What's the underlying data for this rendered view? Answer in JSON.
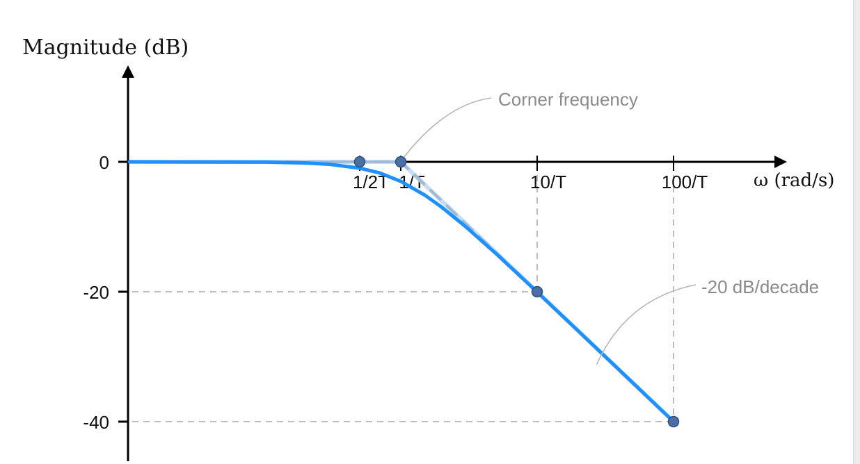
{
  "chart_data": {
    "type": "line",
    "ylabel": "Magnitude (dB)",
    "xlabel": "ω (rad/s)",
    "x_scale": "log",
    "x_ticks": [
      {
        "value": 0.5,
        "label": "1/2T"
      },
      {
        "value": 1,
        "label": "1/T"
      },
      {
        "value": 10,
        "label": "10/T"
      },
      {
        "value": 100,
        "label": "100/T"
      }
    ],
    "y_ticks": [
      {
        "value": 0,
        "label": "0"
      },
      {
        "value": -20,
        "label": "-20"
      },
      {
        "value": -40,
        "label": "-40"
      }
    ],
    "ylim": [
      -45,
      13
    ],
    "series": [
      {
        "kind": "actual",
        "x": [
          0.03,
          0.1,
          0.2,
          0.3,
          0.5,
          0.7,
          1,
          1.5,
          2,
          3,
          5,
          7,
          10,
          20,
          50,
          100
        ],
        "y": [
          0,
          -0.04,
          -0.17,
          -0.37,
          -0.97,
          -1.7,
          -3.01,
          -5.12,
          -6.99,
          -10.0,
          -14.15,
          -17.0,
          -20.04,
          -26.03,
          -33.98,
          -40.0
        ]
      },
      {
        "kind": "asymptote",
        "x": [
          0.03,
          1,
          100
        ],
        "y": [
          0,
          0,
          -40
        ]
      }
    ],
    "points": [
      {
        "x": 0.5,
        "y": 0
      },
      {
        "x": 1,
        "y": 0
      },
      {
        "x": 10,
        "y": -20
      },
      {
        "x": 100,
        "y": -40
      }
    ],
    "annotations": [
      {
        "text": "Corner frequency",
        "x": 1,
        "y": 0
      },
      {
        "text": "-20 dB/decade",
        "x": 30,
        "y": -29.5
      }
    ],
    "grid": false,
    "colors": {
      "curve": "#1e90ff",
      "asymptote": "#1a1a1a",
      "asymptote_overlay": "#bcd7f5",
      "guides": "#bdbdbd",
      "points": "#4a6fa5",
      "axis": "#000000",
      "annotation_text": "#8a8a8a"
    }
  }
}
